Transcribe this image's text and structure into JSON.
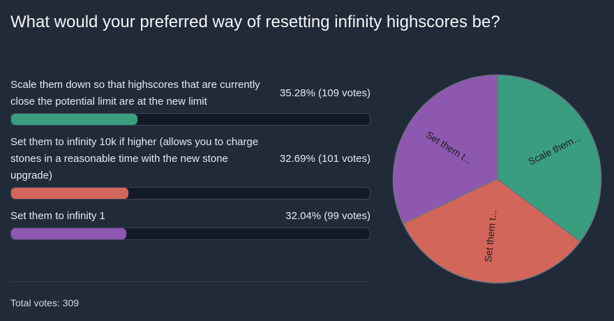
{
  "poll": {
    "question": "What would your preferred way of resetting infinity highscores be?",
    "options": [
      {
        "label": "Scale them down so that highscores that are currently close the potential limit are at the new limit",
        "result": "35.28% (109 votes)",
        "percent": 35.28,
        "color": "#3a9d7f",
        "pie_label": "Scale them..."
      },
      {
        "label": "Set them to infinity 10k if higher (allows you to charge stones in a reasonable time with the new stone upgrade)",
        "result": "32.69% (101 votes)",
        "percent": 32.69,
        "color": "#d3665a",
        "pie_label": "Set them t..."
      },
      {
        "label": "Set them to infinity 1",
        "result": "32.04% (99 votes)",
        "percent": 32.04,
        "color": "#8e58b0",
        "pie_label": "Set them t..."
      }
    ],
    "total": "Total votes: 309"
  }
}
